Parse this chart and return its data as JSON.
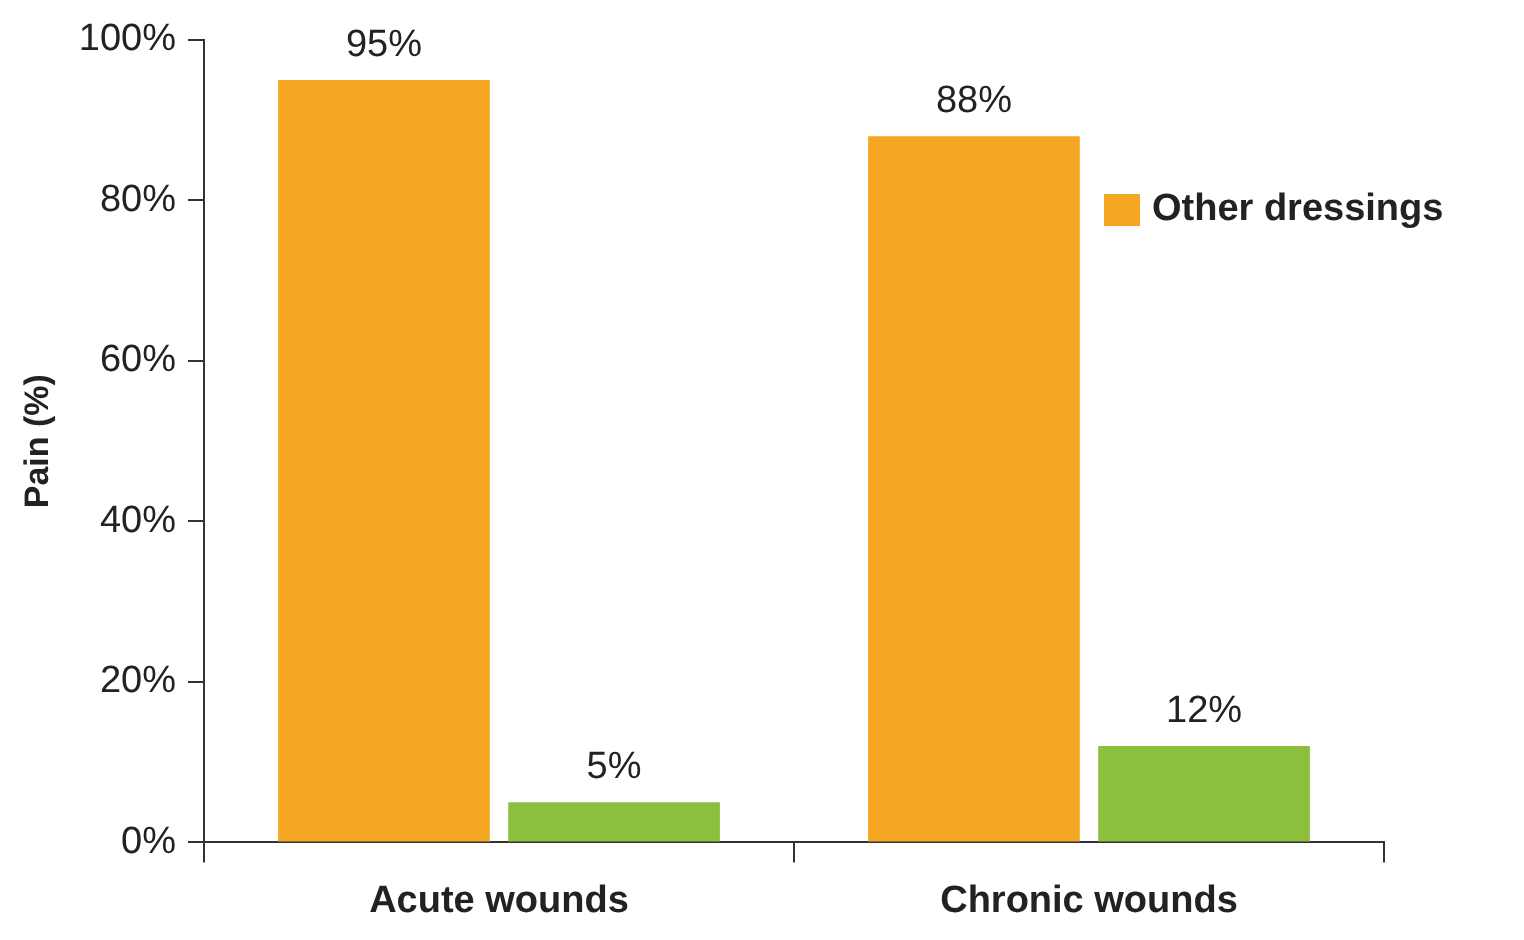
{
  "chart_data": {
    "type": "bar",
    "ylabel": "Pain (%)",
    "categories": [
      "Acute wounds",
      "Chronic wounds"
    ],
    "series": [
      {
        "name": "Other dressings",
        "color": "#f5a623",
        "values": [
          95,
          88
        ]
      },
      {
        "color": "#8dbf3f",
        "values": [
          5,
          12
        ]
      }
    ],
    "ylim": [
      0,
      100
    ],
    "yticks": [
      {
        "value": 0,
        "label": "0%"
      },
      {
        "value": 20,
        "label": "20%"
      },
      {
        "value": 40,
        "label": "40%"
      },
      {
        "value": 60,
        "label": "60%"
      },
      {
        "value": 80,
        "label": "80%"
      },
      {
        "value": 100,
        "label": "100%"
      }
    ],
    "value_labels": [
      [
        "95%",
        "88%"
      ],
      [
        "5%",
        "12%"
      ]
    ],
    "grid": false,
    "legend": "top right"
  }
}
